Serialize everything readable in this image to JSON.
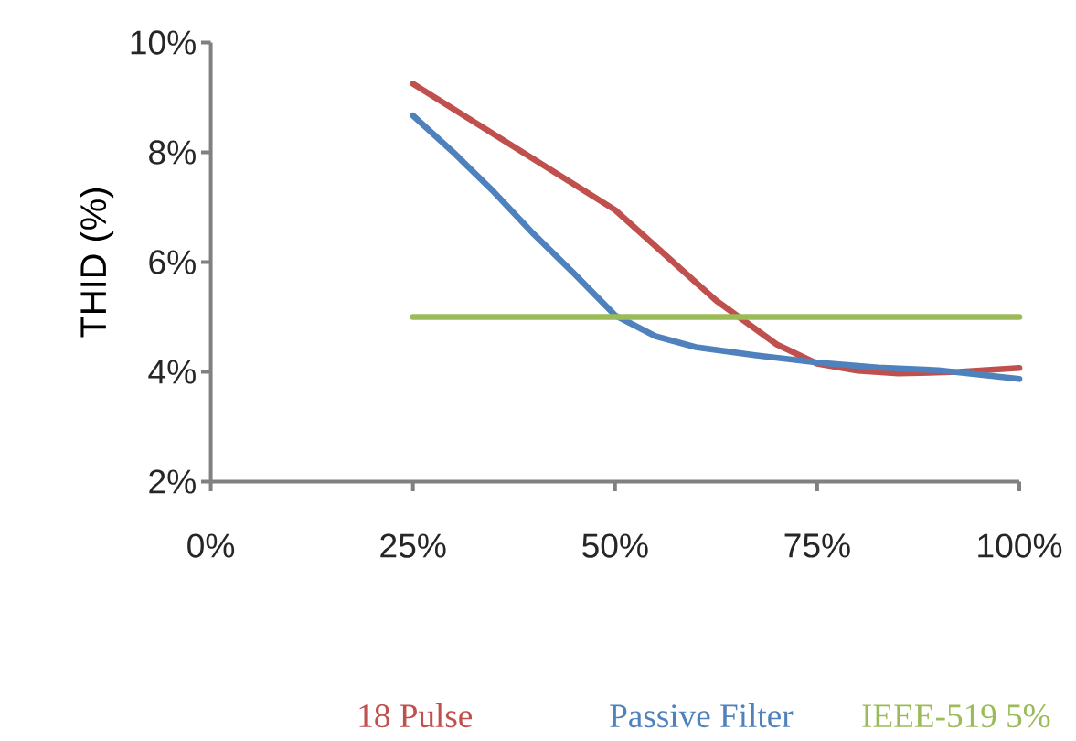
{
  "chart_data": {
    "type": "line",
    "ylabel": "THID (%)",
    "xlim": [
      0,
      100
    ],
    "ylim": [
      2,
      10
    ],
    "xticks": [
      {
        "value": 0,
        "label": "0%"
      },
      {
        "value": 25,
        "label": "25%"
      },
      {
        "value": 50,
        "label": "50%"
      },
      {
        "value": 75,
        "label": "75%"
      },
      {
        "value": 100,
        "label": "100%"
      }
    ],
    "yticks": [
      {
        "value": 2,
        "label": "2%"
      },
      {
        "value": 4,
        "label": "4%"
      },
      {
        "value": 6,
        "label": "6%"
      },
      {
        "value": 8,
        "label": "8%"
      },
      {
        "value": 10,
        "label": "10%"
      }
    ],
    "grid": false,
    "legend": "bottom",
    "marker": "none",
    "line_style": "solid",
    "series": [
      {
        "name": "18 Pulse",
        "color": "#c0504d",
        "x": [
          25,
          37.5,
          50,
          62.5,
          70,
          75,
          80,
          85,
          92.5,
          100
        ],
        "values": [
          9.25,
          8.1,
          6.95,
          5.3,
          4.5,
          4.15,
          4.02,
          3.97,
          4.0,
          4.07
        ]
      },
      {
        "name": "Passive Filter",
        "color": "#4f81bd",
        "x": [
          25,
          30,
          35,
          40,
          45,
          50,
          55,
          60,
          67.5,
          75,
          82.5,
          90,
          100
        ],
        "values": [
          8.67,
          8.0,
          7.28,
          6.5,
          5.78,
          5.03,
          4.65,
          4.45,
          4.3,
          4.17,
          4.08,
          4.03,
          3.87
        ]
      },
      {
        "name": "IEEE-519 5%",
        "color": "#9bbb59",
        "x": [
          25,
          100
        ],
        "values": [
          5,
          5
        ]
      }
    ]
  }
}
